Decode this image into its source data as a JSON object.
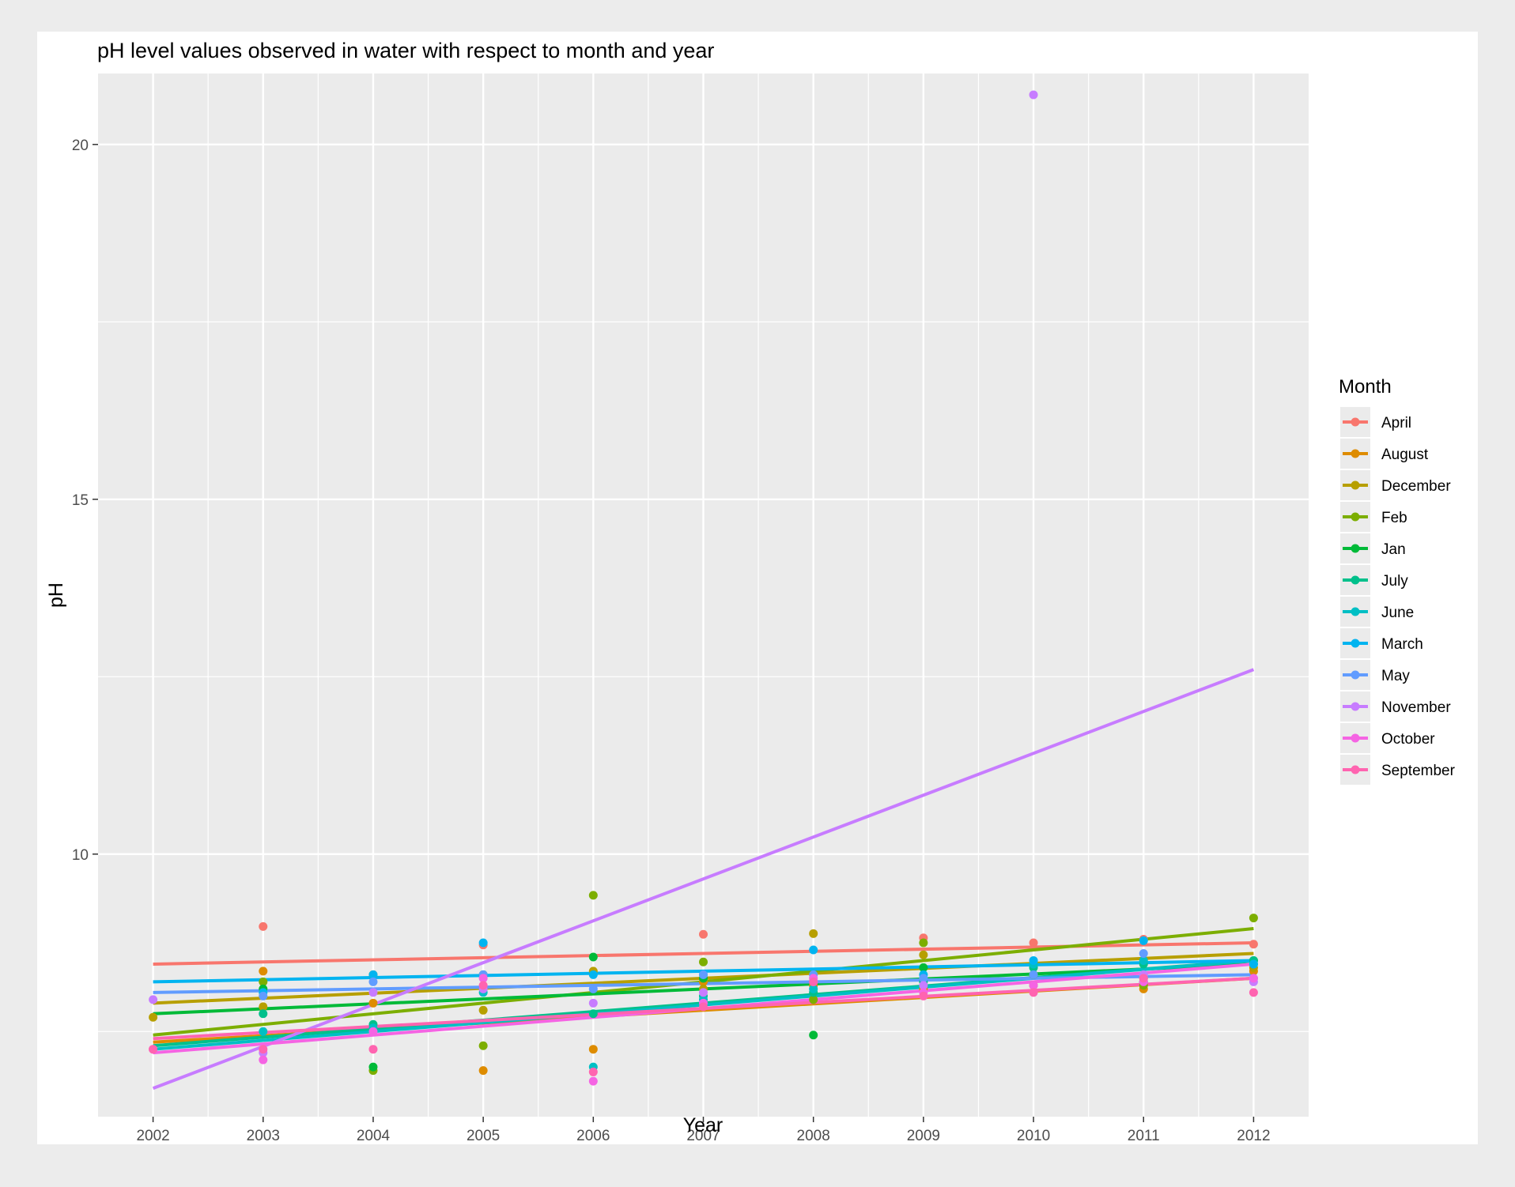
{
  "chart_data": {
    "type": "scatter",
    "title": "pH level values observed in water with respect to month and year",
    "xlabel": "Year",
    "ylabel": "pH",
    "xlim": [
      2001.5,
      2012.5
    ],
    "ylim": [
      6.3,
      21.0
    ],
    "x_ticks": [
      2002,
      2003,
      2004,
      2005,
      2006,
      2007,
      2008,
      2009,
      2010,
      2011,
      2012
    ],
    "y_ticks": [
      10,
      15,
      20
    ],
    "grid": true,
    "legend": {
      "title": "Month",
      "placement": "right"
    },
    "series": [
      {
        "name": "April",
        "color": "#F8766D",
        "trend": [
          [
            2002,
            8.45
          ],
          [
            2012,
            8.75
          ]
        ],
        "points": [
          [
            2003,
            8.98
          ],
          [
            2005,
            8.72
          ],
          [
            2007,
            8.87
          ],
          [
            2009,
            8.82
          ],
          [
            2010,
            8.75
          ],
          [
            2011,
            8.8
          ],
          [
            2012,
            8.73
          ]
        ]
      },
      {
        "name": "August",
        "color": "#DE8C00",
        "trend": [
          [
            2002,
            7.35
          ],
          [
            2012,
            8.25
          ]
        ],
        "points": [
          [
            2003,
            8.35
          ],
          [
            2004,
            7.9
          ],
          [
            2005,
            6.95
          ],
          [
            2006,
            7.25
          ],
          [
            2007,
            8.2
          ],
          [
            2008,
            8.15
          ],
          [
            2009,
            8.1
          ],
          [
            2010,
            8.15
          ],
          [
            2011,
            8.1
          ],
          [
            2012,
            8.35
          ]
        ]
      },
      {
        "name": "December",
        "color": "#B79F00",
        "trend": [
          [
            2002,
            7.9
          ],
          [
            2012,
            8.6
          ]
        ],
        "points": [
          [
            2002,
            7.7
          ],
          [
            2003,
            7.85
          ],
          [
            2004,
            8.3
          ],
          [
            2005,
            7.8
          ],
          [
            2006,
            8.35
          ],
          [
            2007,
            8.1
          ],
          [
            2008,
            8.88
          ],
          [
            2009,
            8.58
          ],
          [
            2010,
            8.3
          ],
          [
            2011,
            8.25
          ],
          [
            2012,
            8.4
          ]
        ]
      },
      {
        "name": "Feb",
        "color": "#7CAE00",
        "trend": [
          [
            2002,
            7.45
          ],
          [
            2012,
            8.95
          ]
        ],
        "points": [
          [
            2003,
            8.2
          ],
          [
            2004,
            6.95
          ],
          [
            2005,
            7.3
          ],
          [
            2006,
            9.42
          ],
          [
            2007,
            8.48
          ],
          [
            2008,
            7.95
          ],
          [
            2009,
            8.75
          ],
          [
            2010,
            8.3
          ],
          [
            2011,
            8.15
          ],
          [
            2012,
            9.1
          ]
        ]
      },
      {
        "name": "Jan",
        "color": "#00BA38",
        "trend": [
          [
            2002,
            7.75
          ],
          [
            2012,
            8.45
          ]
        ],
        "points": [
          [
            2003,
            8.1
          ],
          [
            2004,
            7.0
          ],
          [
            2005,
            8.3
          ],
          [
            2006,
            8.55
          ],
          [
            2007,
            8.25
          ],
          [
            2008,
            7.45
          ],
          [
            2009,
            8.4
          ],
          [
            2010,
            8.3
          ],
          [
            2011,
            8.2
          ],
          [
            2012,
            8.5
          ]
        ]
      },
      {
        "name": "July",
        "color": "#00C08B",
        "trend": [
          [
            2002,
            7.3
          ],
          [
            2012,
            8.5
          ]
        ],
        "points": [
          [
            2003,
            7.75
          ],
          [
            2004,
            7.6
          ],
          [
            2005,
            8.1
          ],
          [
            2006,
            7.75
          ],
          [
            2007,
            8.0
          ],
          [
            2008,
            8.05
          ],
          [
            2009,
            8.2
          ],
          [
            2010,
            8.4
          ],
          [
            2011,
            8.45
          ],
          [
            2012,
            8.5
          ]
        ]
      },
      {
        "name": "June",
        "color": "#00BFC4",
        "trend": [
          [
            2002,
            7.25
          ],
          [
            2012,
            8.5
          ]
        ],
        "points": [
          [
            2003,
            7.5
          ],
          [
            2004,
            7.55
          ],
          [
            2005,
            8.05
          ],
          [
            2006,
            7.0
          ],
          [
            2007,
            7.95
          ],
          [
            2008,
            8.1
          ],
          [
            2009,
            8.25
          ],
          [
            2010,
            8.45
          ],
          [
            2011,
            8.5
          ],
          [
            2012,
            8.45
          ]
        ]
      },
      {
        "name": "March",
        "color": "#00B4F0",
        "trend": [
          [
            2002,
            8.2
          ],
          [
            2012,
            8.5
          ]
        ],
        "points": [
          [
            2003,
            8.05
          ],
          [
            2004,
            8.3
          ],
          [
            2005,
            8.75
          ],
          [
            2006,
            8.3
          ],
          [
            2007,
            8.3
          ],
          [
            2008,
            8.65
          ],
          [
            2009,
            8.3
          ],
          [
            2010,
            8.5
          ],
          [
            2011,
            8.78
          ],
          [
            2012,
            8.45
          ]
        ]
      },
      {
        "name": "May",
        "color": "#619CFF",
        "trend": [
          [
            2002,
            8.05
          ],
          [
            2012,
            8.3
          ]
        ],
        "points": [
          [
            2003,
            8.0
          ],
          [
            2004,
            8.2
          ],
          [
            2005,
            8.3
          ],
          [
            2006,
            8.1
          ],
          [
            2007,
            8.3
          ],
          [
            2008,
            8.3
          ],
          [
            2009,
            8.25
          ],
          [
            2010,
            8.3
          ],
          [
            2011,
            8.6
          ],
          [
            2012,
            8.25
          ]
        ]
      },
      {
        "name": "November",
        "color": "#C77CFF",
        "trend": [
          [
            2002,
            6.7
          ],
          [
            2012,
            12.6
          ]
        ],
        "points": [
          [
            2002,
            7.95
          ],
          [
            2003,
            7.2
          ],
          [
            2004,
            8.05
          ],
          [
            2005,
            8.1
          ],
          [
            2006,
            7.9
          ],
          [
            2007,
            8.05
          ],
          [
            2008,
            8.2
          ],
          [
            2009,
            8.15
          ],
          [
            2010,
            20.7
          ],
          [
            2011,
            8.3
          ],
          [
            2012,
            8.2
          ]
        ]
      },
      {
        "name": "October",
        "color": "#F564E3",
        "trend": [
          [
            2002,
            7.2
          ],
          [
            2012,
            8.45
          ]
        ],
        "points": [
          [
            2002,
            7.25
          ],
          [
            2003,
            7.1
          ],
          [
            2004,
            7.5
          ],
          [
            2005,
            8.25
          ],
          [
            2006,
            6.8
          ],
          [
            2007,
            7.9
          ],
          [
            2008,
            8.25
          ],
          [
            2009,
            8.05
          ],
          [
            2010,
            8.15
          ],
          [
            2011,
            8.2
          ],
          [
            2012,
            8.25
          ]
        ]
      },
      {
        "name": "September",
        "color": "#FF64B0",
        "trend": [
          [
            2002,
            7.4
          ],
          [
            2012,
            8.25
          ]
        ],
        "points": [
          [
            2002,
            7.25
          ],
          [
            2003,
            7.25
          ],
          [
            2004,
            7.25
          ],
          [
            2005,
            8.15
          ],
          [
            2006,
            6.93
          ],
          [
            2007,
            7.85
          ],
          [
            2008,
            8.2
          ],
          [
            2009,
            8.0
          ],
          [
            2010,
            8.05
          ],
          [
            2011,
            8.25
          ],
          [
            2012,
            8.05
          ]
        ]
      }
    ]
  }
}
